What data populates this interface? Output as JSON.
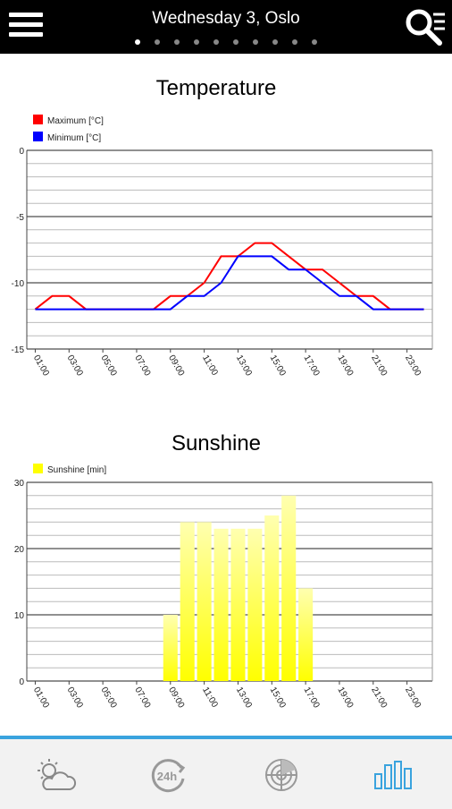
{
  "header": {
    "title": "Wednesday 3, Oslo",
    "page_count": 10,
    "active_page": 0
  },
  "nav": {
    "items": [
      {
        "icon": "partly-cloudy-icon",
        "active": false
      },
      {
        "icon": "24h-icon",
        "active": false
      },
      {
        "icon": "radar-icon",
        "active": false
      },
      {
        "icon": "bar-chart-icon",
        "active": true
      }
    ]
  },
  "colors": {
    "maximum": "#ff0000",
    "minimum": "#0000ff",
    "sunshine": "#ffff00",
    "accent": "#3aa3de"
  },
  "chart_data": [
    {
      "type": "line",
      "title": "Temperature",
      "categories": [
        "01:00",
        "03:00",
        "05:00",
        "07:00",
        "09:00",
        "11:00",
        "13:00",
        "15:00",
        "17:00",
        "19:00",
        "21:00",
        "23:00"
      ],
      "x": [
        1,
        2,
        3,
        4,
        5,
        6,
        7,
        8,
        9,
        10,
        11,
        12,
        13,
        14,
        15,
        16,
        17,
        18,
        19,
        20,
        21,
        22,
        23,
        24
      ],
      "series": [
        {
          "name": "Maximum [°C]",
          "values": [
            -12,
            -11,
            -11,
            -12,
            -12,
            -12,
            -12,
            -12,
            -11,
            -11,
            -10,
            -8,
            -8,
            -7,
            -7,
            -8,
            -9,
            -9,
            -10,
            -11,
            -11,
            -12,
            -12,
            -12
          ]
        },
        {
          "name": "Minimum [°C]",
          "values": [
            -12,
            -12,
            -12,
            -12,
            -12,
            -12,
            -12,
            -12,
            -12,
            -11,
            -11,
            -10,
            -8,
            -8,
            -8,
            -9,
            -9,
            -10,
            -11,
            -11,
            -12,
            -12,
            -12,
            -12
          ]
        }
      ],
      "ylim": [
        -15,
        0
      ],
      "yticks": [
        0,
        -5,
        -10,
        -15
      ],
      "legend": "top-left",
      "grid": true
    },
    {
      "type": "bar",
      "title": "Sunshine",
      "categories": [
        "01:00",
        "03:00",
        "05:00",
        "07:00",
        "09:00",
        "11:00",
        "13:00",
        "15:00",
        "17:00",
        "19:00",
        "21:00",
        "23:00"
      ],
      "x": [
        1,
        2,
        3,
        4,
        5,
        6,
        7,
        8,
        9,
        10,
        11,
        12,
        13,
        14,
        15,
        16,
        17,
        18,
        19,
        20,
        21,
        22,
        23,
        24
      ],
      "series": [
        {
          "name": "Sunshine [min]",
          "values": [
            0,
            0,
            0,
            0,
            0,
            0,
            0,
            0,
            10,
            24,
            24,
            23,
            23,
            23,
            25,
            28,
            14,
            0,
            0,
            0,
            0,
            0,
            0,
            0
          ]
        }
      ],
      "ylim": [
        0,
        30
      ],
      "yticks": [
        30,
        20,
        10,
        0
      ],
      "legend": "top-left",
      "grid": true
    }
  ]
}
